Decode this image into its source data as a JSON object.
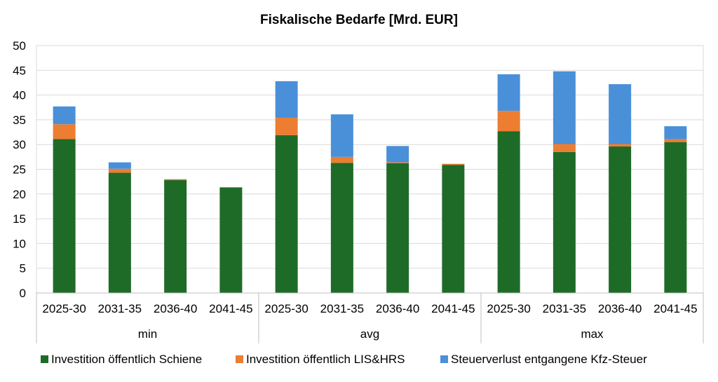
{
  "chart_data": {
    "type": "bar",
    "stacked": true,
    "title": "Fiskalische Bedarfe [Mrd. EUR]",
    "xlabel": "",
    "ylabel": "",
    "ylim": [
      0,
      50
    ],
    "yticks": [
      0,
      5,
      10,
      15,
      20,
      25,
      30,
      35,
      40,
      45,
      50
    ],
    "grid": true,
    "legend_position": "bottom",
    "groups": [
      "min",
      "avg",
      "max"
    ],
    "categories": [
      "2025-30",
      "2031-35",
      "2036-40",
      "2041-45",
      "2025-30",
      "2031-35",
      "2036-40",
      "2041-45",
      "2025-30",
      "2031-35",
      "2036-40",
      "2041-45"
    ],
    "series": [
      {
        "name": "Investition öffentlich Schiene",
        "color": "#1e6b28",
        "values": [
          31.1,
          24.3,
          22.8,
          21.3,
          31.9,
          26.3,
          26.2,
          25.9,
          32.7,
          28.5,
          29.6,
          30.5
        ]
      },
      {
        "name": "Investition öffentlich LIS&HRS",
        "color": "#ed7d31",
        "values": [
          3.0,
          0.8,
          0.2,
          0.1,
          3.5,
          1.2,
          0.2,
          0.2,
          4.1,
          1.6,
          0.5,
          0.6
        ]
      },
      {
        "name": "Steuerverlust entgangene Kfz-Steuer",
        "color": "#4a90d9",
        "values": [
          3.6,
          1.3,
          0.0,
          0.0,
          7.4,
          8.6,
          3.3,
          0.0,
          7.4,
          14.7,
          12.1,
          2.6
        ]
      }
    ]
  }
}
